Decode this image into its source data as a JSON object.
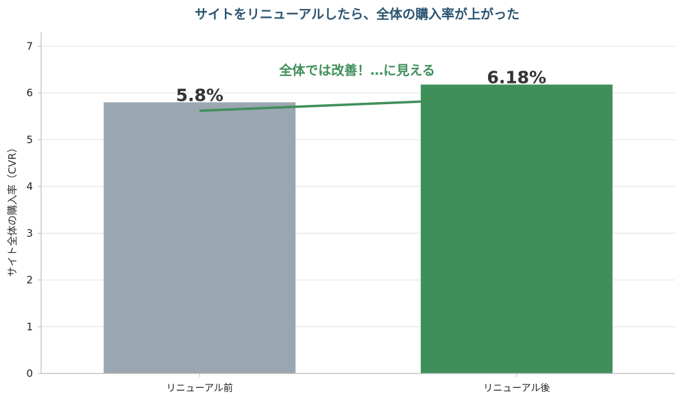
{
  "chart_data": {
    "type": "bar",
    "title": "サイトをリニューアルしたら、全体の購入率が上がった",
    "xlabel": "",
    "ylabel": "サイト全体の購入率（CVR）",
    "categories": [
      "リニューアル前",
      "リニューアル後"
    ],
    "values": [
      5.8,
      6.18
    ],
    "data_labels": [
      "5.8%",
      "6.18%"
    ],
    "ylim": [
      0,
      7.3
    ],
    "yticks": [
      0,
      1,
      2,
      3,
      4,
      5,
      6,
      7
    ],
    "bar_colors": [
      "#9aa6b0",
      "#3f8f5a"
    ],
    "grid": true,
    "legend": "none",
    "annotation": {
      "text": "全体では改善！…に見える",
      "color": "#3f8f5a",
      "trend_line_from": 5.62,
      "trend_line_to": 5.9
    },
    "colors": {
      "title": "#2b5470",
      "grid": "#e6e6e6",
      "axis": "#bbbbbb"
    }
  }
}
